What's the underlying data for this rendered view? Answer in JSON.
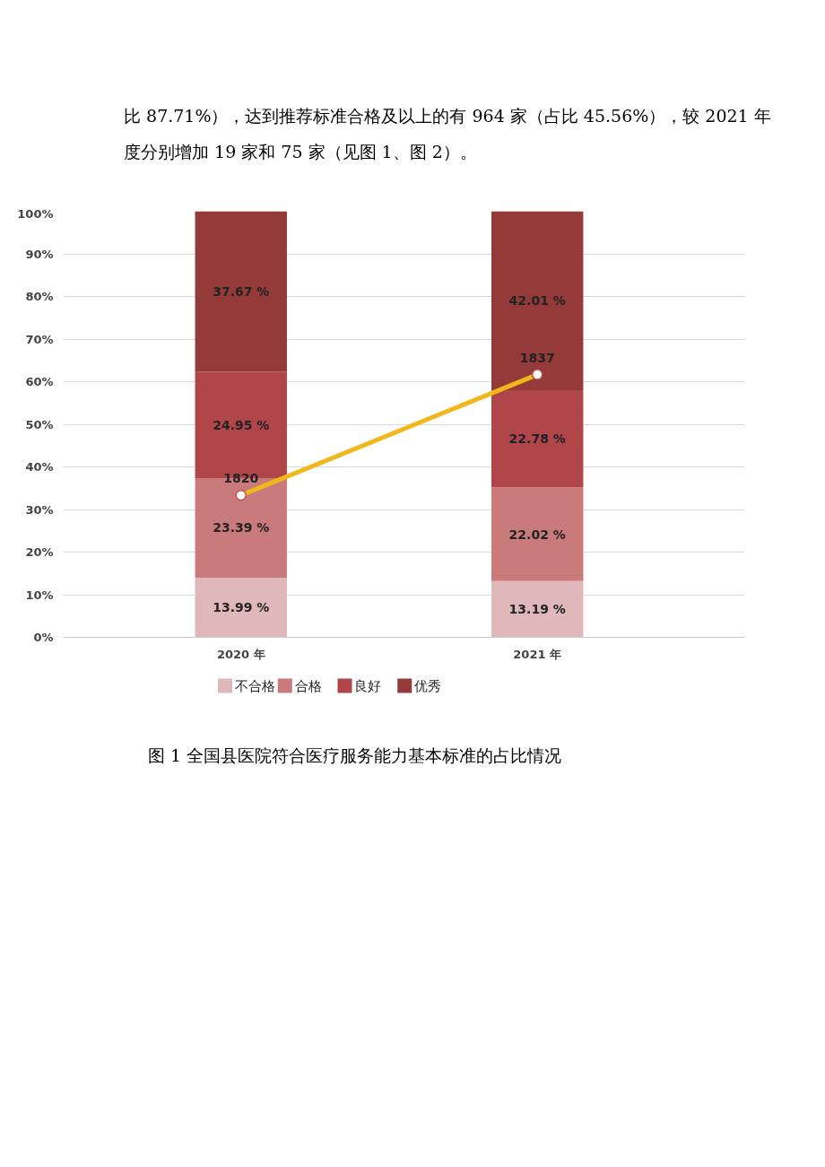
{
  "chart_data": {
    "type": "bar",
    "stacked": true,
    "annotations": [
      "比 87.71%），达到推荐标准合格及以上的有 964 家（占比 45.56%），较 2021 年度分别增加 19 家和 75 家（见图 1、图 2）。",
      "图 1 全国县医院符合医疗服务能力基本标准的占比情况"
    ],
    "categories": [
      "2020 年",
      "2021 年"
    ],
    "ylim": [
      0,
      100
    ],
    "yticks": [
      {
        "value": 0,
        "label": "0%"
      },
      {
        "value": 10,
        "label": "10%"
      },
      {
        "value": 20,
        "label": "20%"
      },
      {
        "value": 30,
        "label": "30%"
      },
      {
        "value": 40,
        "label": "40%"
      },
      {
        "value": 50,
        "label": "50%"
      },
      {
        "value": 60,
        "label": "60%"
      },
      {
        "value": 70,
        "label": "70%"
      },
      {
        "value": 80,
        "label": "80%"
      },
      {
        "value": 90,
        "label": "90%"
      },
      {
        "value": 100,
        "label": "100%"
      }
    ],
    "y2lim": [
      1800,
      1860
    ],
    "grid": "y",
    "legend": "bottom",
    "series": [
      {
        "name": "不合格",
        "color": "#e0b8b9",
        "values": [
          13.99,
          13.19
        ],
        "value_labels": [
          "13.99 %",
          "13.19 %"
        ]
      },
      {
        "name": "合格",
        "color": "#c97b7b",
        "values": [
          23.39,
          22.02
        ],
        "value_labels": [
          "23.39 %",
          "22.02 %"
        ]
      },
      {
        "name": "良好",
        "color": "#b0454a",
        "values": [
          24.95,
          22.78
        ],
        "value_labels": [
          "24.95 %",
          "22.78 %"
        ]
      },
      {
        "name": "优秀",
        "color": "#943b3a",
        "values": [
          37.67,
          42.01
        ],
        "value_labels": [
          "37.67 %",
          "42.01 %"
        ]
      },
      {
        "type": "line",
        "axis": "y2",
        "color": "#f0b81c",
        "marker": "circle",
        "values": [
          1820,
          1837
        ],
        "value_labels": [
          "1820",
          "1837"
        ]
      }
    ]
  }
}
